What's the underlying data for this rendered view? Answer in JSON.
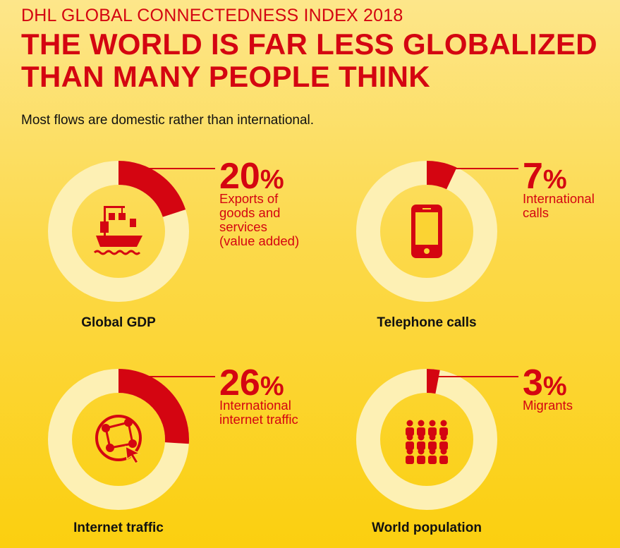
{
  "header": {
    "kicker": "DHL GLOBAL CONNECTEDNESS INDEX 2018",
    "headline_line1": "THE WORLD IS FAR LESS GLOBALIZED",
    "headline_line2": "THAN MANY PEOPLE THINK",
    "subtitle": "Most flows are domestic rather than international."
  },
  "colors": {
    "accent": "#d40511",
    "ring_background": "#fdf0b4",
    "text": "#111111"
  },
  "chart_data": [
    {
      "type": "pie",
      "title": "Global GDP",
      "value": 20,
      "value_label": "20",
      "unit": "%",
      "description": [
        "Exports of",
        "goods and",
        "services",
        "(value added)"
      ],
      "icon": "cargo-ship-icon"
    },
    {
      "type": "pie",
      "title": "Telephone calls",
      "value": 7,
      "value_label": "7",
      "unit": "%",
      "description": [
        "International",
        "calls"
      ],
      "icon": "smartphone-icon"
    },
    {
      "type": "pie",
      "title": "Internet traffic",
      "value": 26,
      "value_label": "26",
      "unit": "%",
      "description": [
        "International",
        "internet traffic"
      ],
      "icon": "globe-network-cursor-icon"
    },
    {
      "type": "pie",
      "title": "World population",
      "value": 3,
      "value_label": "3",
      "unit": "%",
      "description": [
        "Migrants"
      ],
      "icon": "people-crowd-icon"
    }
  ]
}
